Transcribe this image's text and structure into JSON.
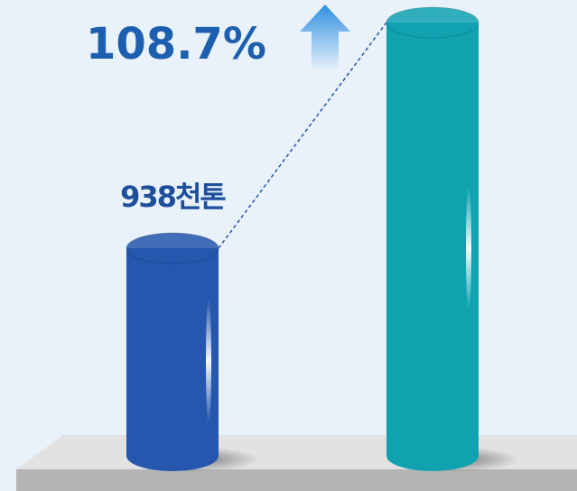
{
  "chart_data": {
    "type": "bar",
    "categories": [
      null,
      null
    ],
    "values": [
      938,
      1958
    ],
    "value_labels": [
      "938천톤",
      null
    ],
    "colors": [
      "#2457ad",
      "#11a2b0"
    ],
    "annotation": "108.7%"
  }
}
